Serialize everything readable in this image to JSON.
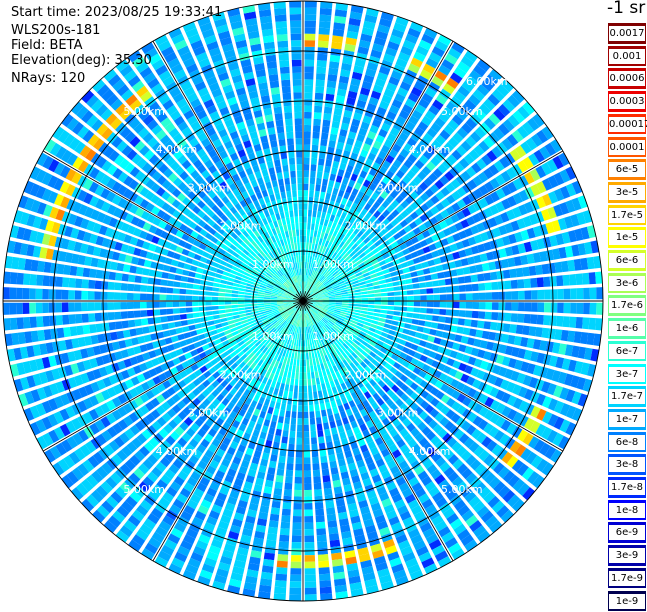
{
  "header": {
    "start_time": "Start time: 2023/08/25 19:33:41",
    "instrument": "WLS200s-181",
    "field": "Field: BETA",
    "elevation": "Elevation(deg): 35.30",
    "nrays": "NRays: 120"
  },
  "chart_data": {
    "type": "heatmap",
    "projection": "polar-ppi",
    "n_rays": 120,
    "elevation_deg": 35.3,
    "range_max_km": 6.0,
    "range_rings_km": [
      1,
      2,
      3,
      4,
      5,
      6
    ],
    "ring_labels": [
      "1.00km",
      "2.00km",
      "3.00km",
      "4.00km",
      "5.00km",
      "6.00km"
    ],
    "spoke_step_deg": 30,
    "grid": true,
    "colorbar": {
      "unit_label": "-1 sr",
      "ticks": [
        "0.0017",
        "0.001",
        "0.0006",
        "0.0003",
        "0.00017",
        "0.0001",
        "6e-5",
        "3e-5",
        "1.7e-5",
        "1e-5",
        "6e-6",
        "3e-6",
        "1.7e-6",
        "1e-6",
        "6e-7",
        "3e-7",
        "1.7e-7",
        "1e-7",
        "6e-8",
        "3e-8",
        "1.7e-8",
        "1e-8",
        "6e-9",
        "3e-9",
        "1.7e-9",
        "1e-9"
      ],
      "colors": [
        "#7f0000",
        "#a00000",
        "#c80000",
        "#ee0000",
        "#ff2a00",
        "#ff5500",
        "#ff8000",
        "#ffaa00",
        "#ffd400",
        "#ffff00",
        "#d4ff2a",
        "#aaff55",
        "#80ff80",
        "#55ffaa",
        "#2affd4",
        "#00ffff",
        "#00d4ff",
        "#00aaff",
        "#0080ff",
        "#0055ff",
        "#002aff",
        "#0000ff",
        "#0000d4",
        "#0000aa",
        "#000080",
        "#000050"
      ]
    },
    "aerosol_layer": {
      "slant_range_km": [
        5.05,
        5.35
      ],
      "peak_level": 6,
      "background_level": 17,
      "near_range_level": 14,
      "enhanced_sectors_deg": [
        [
          0,
          12
        ],
        [
          25,
          35
        ],
        [
          55,
          75
        ],
        [
          115,
          130
        ],
        [
          160,
          178
        ],
        [
          178,
          185
        ],
        [
          280,
          325
        ]
      ]
    }
  }
}
